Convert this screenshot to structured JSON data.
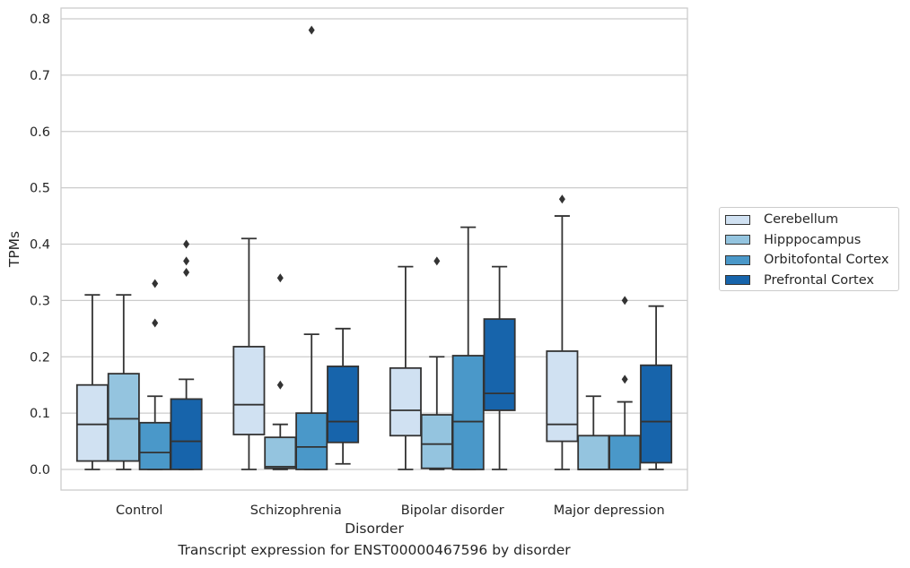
{
  "chart_data": {
    "type": "boxplot",
    "xlabel": "Disorder",
    "ylabel": "TPMs",
    "ylim": [
      -0.04,
      0.82
    ],
    "yticks": [
      0.0,
      0.1,
      0.2,
      0.3,
      0.4,
      0.5,
      0.6,
      0.7,
      0.8
    ],
    "ytick_labels": [
      "0.0",
      "0.1",
      "0.2",
      "0.3",
      "0.4",
      "0.5",
      "0.6",
      "0.7",
      "0.8"
    ],
    "grid": "horizontal",
    "legend_position": "right",
    "categories": [
      "Control",
      "Schizophrenia",
      "Bipolar disorder",
      "Major depression"
    ],
    "series": [
      {
        "name": "Cerebellum",
        "color": "#d0e1f2",
        "boxes": [
          {
            "whislo": 0.0,
            "q1": 0.015,
            "med": 0.08,
            "q3": 0.15,
            "whishi": 0.31,
            "fliers": []
          },
          {
            "whislo": 0.0,
            "q1": 0.062,
            "med": 0.115,
            "q3": 0.218,
            "whishi": 0.41,
            "fliers": []
          },
          {
            "whislo": 0.0,
            "q1": 0.06,
            "med": 0.105,
            "q3": 0.18,
            "whishi": 0.36,
            "fliers": []
          },
          {
            "whislo": 0.0,
            "q1": 0.05,
            "med": 0.08,
            "q3": 0.21,
            "whishi": 0.45,
            "fliers": [
              0.48
            ]
          }
        ]
      },
      {
        "name": "Hipppocampus",
        "color": "#94c4df",
        "boxes": [
          {
            "whislo": 0.0,
            "q1": 0.015,
            "med": 0.09,
            "q3": 0.17,
            "whishi": 0.31,
            "fliers": []
          },
          {
            "whislo": 0.0,
            "q1": 0.002,
            "med": 0.005,
            "q3": 0.057,
            "whishi": 0.08,
            "fliers": [
              0.15,
              0.34
            ]
          },
          {
            "whislo": 0.0,
            "q1": 0.002,
            "med": 0.045,
            "q3": 0.097,
            "whishi": 0.2,
            "fliers": [
              0.37
            ]
          },
          {
            "whislo": 0.0,
            "q1": 0.0,
            "med": 0.0,
            "q3": 0.06,
            "whishi": 0.13,
            "fliers": []
          }
        ]
      },
      {
        "name": "Orbitofontal Cortex",
        "color": "#4a98c9",
        "boxes": [
          {
            "whislo": 0.0,
            "q1": 0.0,
            "med": 0.03,
            "q3": 0.083,
            "whishi": 0.13,
            "fliers": [
              0.26,
              0.33
            ]
          },
          {
            "whislo": 0.0,
            "q1": 0.0,
            "med": 0.04,
            "q3": 0.1,
            "whishi": 0.24,
            "fliers": [
              0.78
            ]
          },
          {
            "whislo": 0.0,
            "q1": 0.0,
            "med": 0.085,
            "q3": 0.202,
            "whishi": 0.43,
            "fliers": []
          },
          {
            "whislo": 0.0,
            "q1": 0.0,
            "med": 0.0,
            "q3": 0.06,
            "whishi": 0.12,
            "fliers": [
              0.16,
              0.3
            ]
          }
        ]
      },
      {
        "name": "Prefrontal Cortex",
        "color": "#1764ab",
        "boxes": [
          {
            "whislo": 0.0,
            "q1": 0.0,
            "med": 0.05,
            "q3": 0.125,
            "whishi": 0.16,
            "fliers": [
              0.35,
              0.37,
              0.4
            ]
          },
          {
            "whislo": 0.01,
            "q1": 0.048,
            "med": 0.085,
            "q3": 0.183,
            "whishi": 0.25,
            "fliers": []
          },
          {
            "whislo": 0.0,
            "q1": 0.105,
            "med": 0.135,
            "q3": 0.267,
            "whishi": 0.36,
            "fliers": []
          },
          {
            "whislo": 0.0,
            "q1": 0.012,
            "med": 0.085,
            "q3": 0.185,
            "whishi": 0.29,
            "fliers": []
          }
        ]
      }
    ]
  },
  "caption": "Transcript expression for ENST00000467596 by disorder"
}
